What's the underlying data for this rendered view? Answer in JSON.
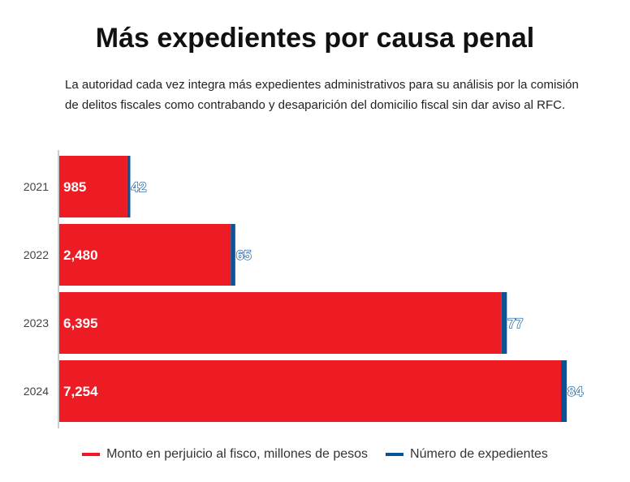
{
  "chart_data": {
    "type": "bar",
    "orientation": "horizontal",
    "stacked": true,
    "title": "Más expedientes por causa penal",
    "subtitle": "La autoridad cada vez integra más expedientes administrativos para su análisis por la comisión de delitos fiscales como contrabando y desaparición del domicilio fiscal sin dar aviso al RFC.",
    "categories": [
      "2021",
      "2022",
      "2023",
      "2024"
    ],
    "series": [
      {
        "name": "Monto en perjuicio al fisco, millones de pesos",
        "color": "#ed1c24",
        "values": [
          985,
          2480,
          6395,
          7254
        ],
        "labels": [
          "985",
          "2,480",
          "6,395",
          "7,254"
        ]
      },
      {
        "name": "Número de expedientes",
        "color": "#0b5394",
        "values": [
          42,
          65,
          77,
          84
        ],
        "labels": [
          "42",
          "65",
          "77",
          "84"
        ]
      }
    ],
    "grid": false,
    "legend_position": "bottom"
  }
}
